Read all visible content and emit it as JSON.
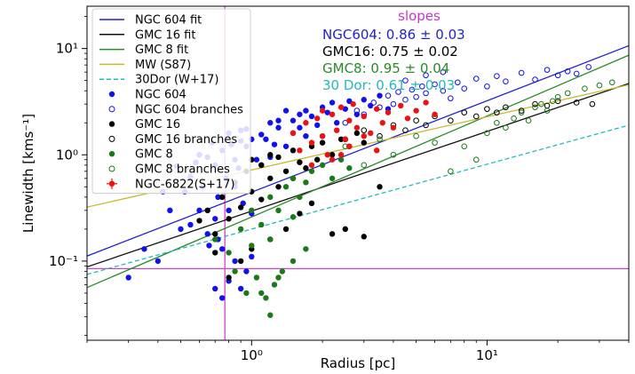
{
  "chart_data": {
    "type": "scatter",
    "xlabel": "Radius [pc]",
    "ylabel": "Linewidth [kms⁻¹]",
    "xscale": "log",
    "yscale": "log",
    "xlim": [
      0.2,
      40
    ],
    "ylim": [
      0.018,
      25
    ],
    "x_ticks": [
      {
        "value": 1,
        "label": "10⁰"
      },
      {
        "value": 10,
        "label": "10¹"
      }
    ],
    "y_ticks": [
      {
        "value": 0.1,
        "label": "10⁻¹"
      },
      {
        "value": 1,
        "label": "10⁰"
      },
      {
        "value": 10,
        "label": "10¹"
      }
    ],
    "grid": false,
    "legend_position": "upper-left",
    "reference_lines": [
      {
        "orientation": "vertical",
        "x": 0.77,
        "color": "#cc44cc"
      },
      {
        "orientation": "horizontal",
        "y": 0.085,
        "color": "#cc44cc"
      }
    ],
    "fits": [
      {
        "name": "NGC 604 fit",
        "color": "#2222cc",
        "dash": "solid",
        "slope": 0.86,
        "y_at_1pc": 0.445
      },
      {
        "name": "GMC 16 fit",
        "color": "#111111",
        "dash": "solid",
        "slope": 0.75,
        "y_at_1pc": 0.295
      },
      {
        "name": "GMC 8 fit",
        "color": "#2a8a2a",
        "dash": "solid",
        "slope": 0.95,
        "y_at_1pc": 0.26
      },
      {
        "name": "MW (S87)",
        "color": "#c9b830",
        "dash": "solid",
        "slope": 0.5,
        "y_at_1pc": 0.72
      },
      {
        "name": "30Dor (W+17)",
        "color": "#22bbbb",
        "dash": "dashed",
        "slope": 0.61,
        "y_at_1pc": 0.2
      }
    ],
    "series": [
      {
        "name": "NGC 604",
        "color": "#1111ee",
        "marker": "filled",
        "x": [
          0.3,
          0.35,
          0.4,
          0.42,
          0.45,
          0.48,
          0.5,
          0.52,
          0.55,
          0.55,
          0.58,
          0.6,
          0.6,
          0.62,
          0.65,
          0.65,
          0.68,
          0.7,
          0.7,
          0.72,
          0.75,
          0.75,
          0.78,
          0.8,
          0.8,
          0.82,
          0.85,
          0.85,
          0.88,
          0.9,
          0.9,
          0.92,
          0.95,
          0.95,
          1.0,
          1.0,
          1.05,
          1.1,
          1.1,
          1.15,
          1.2,
          1.2,
          1.25,
          1.3,
          1.3,
          1.4,
          1.4,
          1.5,
          1.5,
          1.6,
          1.6,
          1.7,
          1.7,
          1.8,
          1.9,
          2.0,
          2.0,
          2.1,
          2.2,
          2.3,
          2.5,
          2.6,
          2.8,
          3.0,
          3.2,
          3.5,
          3.8,
          0.7,
          0.75,
          0.8,
          0.85,
          0.9,
          1.0,
          0.95,
          0.66,
          0.72
        ],
        "y": [
          0.07,
          0.13,
          0.1,
          0.45,
          0.3,
          0.78,
          0.2,
          0.45,
          0.62,
          0.22,
          0.85,
          0.3,
          1.0,
          0.5,
          0.18,
          0.95,
          1.3,
          0.25,
          0.8,
          0.4,
          0.13,
          1.1,
          0.6,
          0.3,
          1.6,
          1.25,
          0.5,
          0.9,
          0.75,
          1.35,
          1.7,
          0.35,
          1.2,
          1.75,
          0.28,
          1.4,
          0.9,
          0.8,
          1.55,
          1.4,
          0.95,
          2.0,
          1.25,
          1.8,
          2.1,
          1.2,
          2.6,
          1.6,
          2.1,
          1.8,
          2.4,
          1.5,
          2.6,
          2.3,
          1.9,
          2.8,
          1.5,
          2.5,
          3.1,
          2.0,
          2.7,
          3.2,
          2.4,
          3.3,
          2.9,
          3.6,
          2.7,
          0.055,
          0.045,
          0.065,
          0.1,
          0.055,
          0.11,
          0.08,
          0.14,
          0.16
        ]
      },
      {
        "name": "NGC 604 branches",
        "color": "#1111ee",
        "marker": "open",
        "x": [
          2.5,
          2.8,
          3.0,
          3.3,
          3.5,
          3.8,
          4.0,
          4.2,
          4.5,
          4.8,
          5.0,
          5.3,
          5.5,
          6.0,
          6.5,
          7.0,
          7.5,
          8.0,
          9.0,
          10.0,
          11.0,
          12.0,
          14.0,
          16.0,
          18.0,
          20.0,
          22.0,
          24.0,
          27.0,
          4.5,
          5.5,
          6.5
        ],
        "y": [
          2.0,
          2.6,
          2.4,
          3.1,
          2.8,
          3.6,
          3.0,
          3.9,
          3.3,
          4.1,
          3.5,
          4.4,
          3.8,
          4.6,
          4.0,
          3.4,
          4.8,
          4.2,
          5.2,
          4.4,
          5.5,
          4.9,
          5.9,
          5.1,
          6.3,
          5.6,
          6.1,
          5.8,
          6.7,
          5.0,
          5.6,
          6.0
        ]
      },
      {
        "name": "GMC 16",
        "color": "#000000",
        "marker": "filled",
        "x": [
          0.6,
          0.65,
          0.7,
          0.75,
          0.8,
          0.85,
          0.9,
          0.95,
          1.0,
          1.0,
          1.1,
          1.1,
          1.2,
          1.2,
          1.3,
          1.3,
          1.4,
          1.5,
          1.5,
          1.6,
          1.7,
          1.8,
          1.9,
          2.0,
          2.2,
          2.4,
          2.6,
          2.8,
          3.0,
          0.8,
          0.9,
          1.0,
          1.2,
          1.4,
          1.6,
          1.8,
          2.2,
          2.5,
          3.0,
          3.5,
          0.7
        ],
        "y": [
          0.24,
          0.3,
          0.18,
          0.4,
          0.25,
          0.55,
          0.32,
          0.7,
          0.45,
          0.9,
          0.38,
          0.8,
          0.6,
          1.0,
          0.5,
          0.95,
          0.7,
          0.6,
          1.1,
          0.85,
          0.75,
          1.2,
          0.9,
          1.3,
          1.0,
          1.4,
          1.2,
          1.6,
          1.3,
          0.07,
          0.1,
          0.13,
          0.16,
          0.2,
          0.28,
          0.35,
          0.18,
          0.2,
          0.17,
          0.5,
          0.12
        ]
      },
      {
        "name": "GMC 16 branches",
        "color": "#000000",
        "marker": "open",
        "x": [
          2.5,
          3.0,
          3.5,
          4.0,
          4.5,
          5.0,
          5.5,
          6.0,
          7.0,
          8.0,
          9.0,
          10.0,
          11.0,
          12.0,
          14.0,
          16.0,
          18.0,
          20.0,
          24.0,
          28.0
        ],
        "y": [
          1.4,
          1.7,
          1.5,
          1.9,
          1.7,
          2.1,
          1.9,
          2.3,
          2.1,
          2.5,
          2.3,
          2.7,
          2.5,
          2.8,
          2.6,
          3.0,
          2.9,
          3.2,
          3.1,
          3.0
        ]
      },
      {
        "name": "GMC 8",
        "color": "#1a7a1a",
        "marker": "filled",
        "x": [
          0.7,
          0.8,
          0.9,
          1.0,
          1.0,
          1.1,
          1.2,
          1.2,
          1.3,
          1.4,
          1.5,
          1.5,
          1.6,
          1.7,
          1.8,
          2.0,
          2.2,
          2.4,
          2.6,
          0.85,
          0.95,
          1.05,
          1.15,
          1.25,
          1.35,
          1.5,
          1.7,
          1.2,
          1.1,
          1.3
        ],
        "y": [
          0.16,
          0.12,
          0.2,
          0.14,
          0.3,
          0.22,
          0.4,
          0.16,
          0.3,
          0.5,
          0.26,
          0.6,
          0.4,
          0.55,
          0.7,
          0.8,
          0.6,
          0.9,
          0.75,
          0.08,
          0.05,
          0.07,
          0.045,
          0.06,
          0.08,
          0.1,
          0.13,
          0.031,
          0.05,
          0.07
        ]
      },
      {
        "name": "GMC 8 branches",
        "color": "#1a7a1a",
        "marker": "open",
        "x": [
          2.5,
          3.0,
          3.5,
          4.0,
          5.0,
          6.0,
          7.0,
          8.0,
          9.0,
          10.0,
          11.0,
          12.0,
          13.0,
          14.0,
          15.0,
          16.0,
          17.0,
          18.0,
          19.0,
          20.0,
          22.0,
          26.0,
          30.0,
          34.0
        ],
        "y": [
          1.2,
          0.8,
          1.4,
          1.0,
          1.5,
          1.3,
          0.7,
          1.2,
          0.9,
          1.6,
          2.0,
          1.8,
          2.2,
          2.5,
          2.1,
          2.8,
          3.0,
          2.6,
          3.2,
          3.5,
          3.8,
          4.2,
          4.5,
          4.8
        ]
      },
      {
        "name": "NGC-6822(S+17)",
        "color": "#ee1111",
        "marker": "filled",
        "x": [
          1.5,
          1.6,
          1.7,
          1.8,
          1.9,
          2.0,
          2.0,
          2.1,
          2.2,
          2.3,
          2.4,
          2.5,
          2.6,
          2.7,
          2.8,
          3.0,
          3.2,
          3.4,
          3.6,
          3.8,
          4.0,
          4.3,
          4.6,
          5.0,
          5.5,
          6.0,
          2.2,
          2.6,
          3.0,
          3.4,
          1.8,
          2.4
        ],
        "y": [
          1.6,
          1.1,
          2.0,
          1.3,
          2.2,
          1.5,
          2.6,
          1.0,
          2.4,
          1.7,
          2.8,
          1.4,
          2.1,
          3.0,
          1.8,
          2.3,
          1.6,
          2.7,
          2.0,
          2.5,
          1.8,
          2.9,
          2.2,
          2.6,
          3.1,
          2.4,
          0.9,
          1.2,
          1.5,
          1.1,
          0.8,
          1.0
        ]
      }
    ],
    "legend": [
      {
        "label": "NGC 604 fit",
        "kind": "line",
        "color": "#2222cc",
        "dash": "solid"
      },
      {
        "label": "GMC 16 fit",
        "kind": "line",
        "color": "#111111",
        "dash": "solid"
      },
      {
        "label": "GMC 8 fit",
        "kind": "line",
        "color": "#2a8a2a",
        "dash": "solid"
      },
      {
        "label": "MW (S87)",
        "kind": "line",
        "color": "#c9b830",
        "dash": "solid"
      },
      {
        "label": "30Dor (W+17)",
        "kind": "line",
        "color": "#22bbbb",
        "dash": "dashed"
      },
      {
        "label": "NGC 604",
        "kind": "dot",
        "color": "#1111ee"
      },
      {
        "label": "NGC 604 branches",
        "kind": "circle",
        "color": "#1111ee"
      },
      {
        "label": "GMC 16",
        "kind": "dot",
        "color": "#000000"
      },
      {
        "label": "GMC 16 branches",
        "kind": "circle",
        "color": "#000000"
      },
      {
        "label": "GMC 8",
        "kind": "dot",
        "color": "#1a7a1a"
      },
      {
        "label": "GMC 8 branches",
        "kind": "circle",
        "color": "#1a7a1a"
      },
      {
        "label": "NGC-6822(S+17)",
        "kind": "errdot",
        "color": "#ee1111"
      }
    ],
    "annotations": {
      "title": {
        "text": "slopes",
        "color": "#cc33cc"
      },
      "lines": [
        {
          "text": "NGC604: 0.86 ± 0.03",
          "color": "#2222cc"
        },
        {
          "text": "GMC16: 0.75 ± 0.02",
          "color": "#000000"
        },
        {
          "text": "GMC8: 0.95 ± 0.04",
          "color": "#2a8a2a"
        },
        {
          "text": "30 Dor: 0.61 ± 0.03",
          "color": "#22bbbb"
        }
      ]
    }
  }
}
